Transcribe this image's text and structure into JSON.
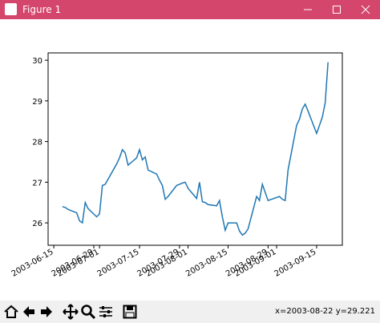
{
  "window_title": "Figure 1",
  "status": "x=2003-08-22 y=29.221",
  "chart_data": {
    "type": "line",
    "x": [
      "2003-06-18",
      "2003-06-19",
      "2003-06-20",
      "2003-06-23",
      "2003-06-24",
      "2003-06-25",
      "2003-06-26",
      "2003-06-27",
      "2003-06-30",
      "2003-07-01",
      "2003-07-02",
      "2003-07-03",
      "2003-07-07",
      "2003-07-08",
      "2003-07-09",
      "2003-07-10",
      "2003-07-11",
      "2003-07-14",
      "2003-07-15",
      "2003-07-16",
      "2003-07-17",
      "2003-07-18",
      "2003-07-21",
      "2003-07-22",
      "2003-07-23",
      "2003-07-24",
      "2003-07-25",
      "2003-07-28",
      "2003-07-29",
      "2003-07-30",
      "2003-07-31",
      "2003-08-01",
      "2003-08-04",
      "2003-08-05",
      "2003-08-06",
      "2003-08-07",
      "2003-08-08",
      "2003-08-11",
      "2003-08-12",
      "2003-08-13",
      "2003-08-14",
      "2003-08-15",
      "2003-08-18",
      "2003-08-19",
      "2003-08-20",
      "2003-08-21",
      "2003-08-22",
      "2003-08-25",
      "2003-08-26",
      "2003-08-27",
      "2003-08-28",
      "2003-08-29",
      "2003-09-02",
      "2003-09-03",
      "2003-09-04",
      "2003-09-05",
      "2003-09-08",
      "2003-09-09",
      "2003-09-10",
      "2003-09-11",
      "2003-09-12",
      "2003-09-15",
      "2003-09-16",
      "2003-09-17",
      "2003-09-18",
      "2003-09-19"
    ],
    "series": [
      {
        "color": "#1f77b4",
        "values": [
          26.4,
          26.38,
          26.33,
          26.25,
          26.05,
          26.0,
          26.5,
          26.35,
          26.15,
          26.22,
          26.92,
          26.95,
          27.45,
          27.6,
          27.8,
          27.72,
          27.42,
          27.6,
          27.8,
          27.55,
          27.62,
          27.3,
          27.2,
          27.05,
          26.92,
          26.58,
          26.65,
          26.92,
          26.95,
          26.98,
          27.0,
          26.85,
          26.6,
          27.0,
          26.52,
          26.5,
          26.45,
          26.42,
          26.55,
          26.15,
          25.82,
          26.0,
          26.0,
          25.8,
          25.7,
          25.75,
          25.85,
          26.65,
          26.55,
          26.95,
          26.75,
          26.55,
          26.65,
          26.58,
          26.55,
          27.3,
          28.4,
          28.55,
          28.8,
          28.92,
          28.75,
          28.2,
          28.4,
          28.6,
          28.95,
          29.95
        ]
      }
    ],
    "xlim": [
      "2003-06-13",
      "2003-09-24"
    ],
    "xticks": [
      "2003-06-15",
      "2003-06-29",
      "2003-07-01",
      "2003-07-15",
      "2003-07-29",
      "2003-08-01",
      "2003-08-15",
      "2003-08-29",
      "2003-09-01",
      "2003-09-15"
    ],
    "ylim": [
      25.45,
      30.18
    ],
    "yticks": [
      26,
      27,
      28,
      29,
      30
    ]
  }
}
